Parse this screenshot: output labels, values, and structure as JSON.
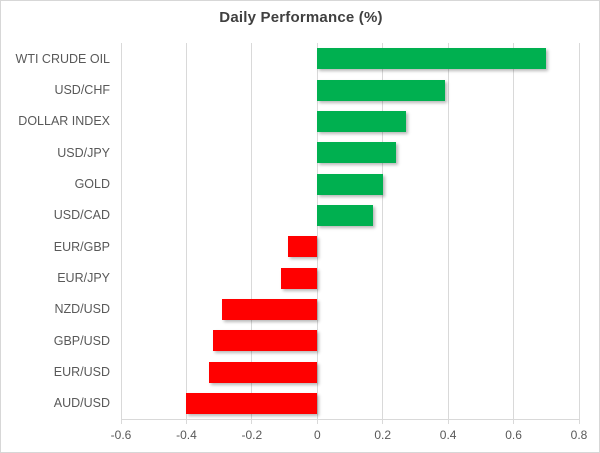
{
  "chart_data": {
    "type": "bar",
    "orientation": "horizontal",
    "title": "Daily Performance (%)",
    "categories": [
      "WTI CRUDE OIL",
      "USD/CHF",
      "DOLLAR INDEX",
      "USD/JPY",
      "GOLD",
      "USD/CAD",
      "EUR/GBP",
      "EUR/JPY",
      "NZD/USD",
      "GBP/USD",
      "EUR/USD",
      "AUD/USD"
    ],
    "values": [
      0.7,
      0.39,
      0.27,
      0.24,
      0.2,
      0.17,
      -0.09,
      -0.11,
      -0.29,
      -0.32,
      -0.33,
      -0.4
    ],
    "xlim": [
      -0.6,
      0.8
    ],
    "xticks": [
      -0.6,
      -0.4,
      -0.2,
      0,
      0.2,
      0.4,
      0.6,
      0.8
    ],
    "xtick_labels": [
      "-0.6",
      "-0.4",
      "-0.2",
      "0",
      "0.2",
      "0.4",
      "0.6",
      "0.8"
    ],
    "grid": "vertical-gridlines-on",
    "legend": "none",
    "colors": {
      "positive": "#00B050",
      "negative": "#FF0000",
      "gridline": "#D9D9D9",
      "axis_text": "#595959",
      "title_text": "#404040"
    }
  }
}
